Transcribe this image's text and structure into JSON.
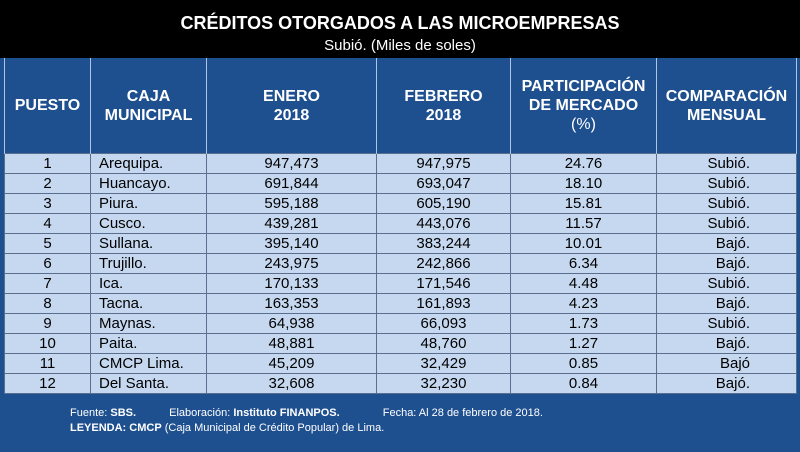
{
  "header": {
    "title": "CRÉDITOS OTORGADOS A LAS MICROEMPRESAS",
    "subtitle": "Subió. (Miles de soles)"
  },
  "columns": {
    "rank": "PUESTO",
    "caja_l1": "CAJA",
    "caja_l2": "MUNICIPAL",
    "enero_l1": "ENERO",
    "enero_l2": "2018",
    "febrero_l1": "FEBRERO",
    "febrero_l2": "2018",
    "part_l1": "PARTICIPACIÓN",
    "part_l2": "DE MERCADO",
    "part_l3": "(%)",
    "comp_l1": "COMPARACIÓN",
    "comp_l2": "MENSUAL"
  },
  "rows": [
    {
      "rank": "1",
      "name": "Arequipa.",
      "enero": "947,473",
      "febrero": "947,975",
      "share": "24.76",
      "comparison": "Subió."
    },
    {
      "rank": "2",
      "name": "Huancayo.",
      "enero": "691,844",
      "febrero": "693,047",
      "share": "18.10",
      "comparison": "Subió."
    },
    {
      "rank": "3",
      "name": "Piura.",
      "enero": "595,188",
      "febrero": "605,190",
      "share": "15.81",
      "comparison": "Subió."
    },
    {
      "rank": "4",
      "name": "Cusco.",
      "enero": "439,281",
      "febrero": "443,076",
      "share": "11.57",
      "comparison": "Subió."
    },
    {
      "rank": "5",
      "name": "Sullana.",
      "enero": "395,140",
      "febrero": "383,244",
      "share": "10.01",
      "comparison": "Bajó."
    },
    {
      "rank": "6",
      "name": "Trujillo.",
      "enero": "243,975",
      "febrero": "242,866",
      "share": "6.34",
      "comparison": "Bajó."
    },
    {
      "rank": "7",
      "name": "Ica.",
      "enero": "170,133",
      "febrero": "171,546",
      "share": "4.48",
      "comparison": "Subió."
    },
    {
      "rank": "8",
      "name": "Tacna.",
      "enero": "163,353",
      "febrero": "161,893",
      "share": "4.23",
      "comparison": "Bajó."
    },
    {
      "rank": "9",
      "name": "Maynas.",
      "enero": "64,938",
      "febrero": "66,093",
      "share": "1.73",
      "comparison": "Subió."
    },
    {
      "rank": "10",
      "name": "Paita.",
      "enero": "48,881",
      "febrero": "48,760",
      "share": "1.27",
      "comparison": "Bajó."
    },
    {
      "rank": "11",
      "name": "CMCP Lima.",
      "enero": "45,209",
      "febrero": "32,429",
      "share": "0.85",
      "comparison": "Bajó"
    },
    {
      "rank": "12",
      "name": "Del Santa.",
      "enero": "32,608",
      "febrero": "32,230",
      "share": "0.84",
      "comparison": "Bajó."
    }
  ],
  "footer": {
    "source_label": "Fuente:",
    "source_value": "SBS.",
    "elab_label": "Elaboración:",
    "elab_value": "Instituto FINANPOS.",
    "date_text": "Fecha: Al 28 de febrero de 2018.",
    "legend_label": "LEYENDA:",
    "legend_term": "CMCP",
    "legend_text": "(Caja Municipal de Crédito Popular) de Lima."
  },
  "colors": {
    "navy": "#1e4f8f",
    "cell": "#c5d8f0",
    "title_band": "#000000"
  }
}
